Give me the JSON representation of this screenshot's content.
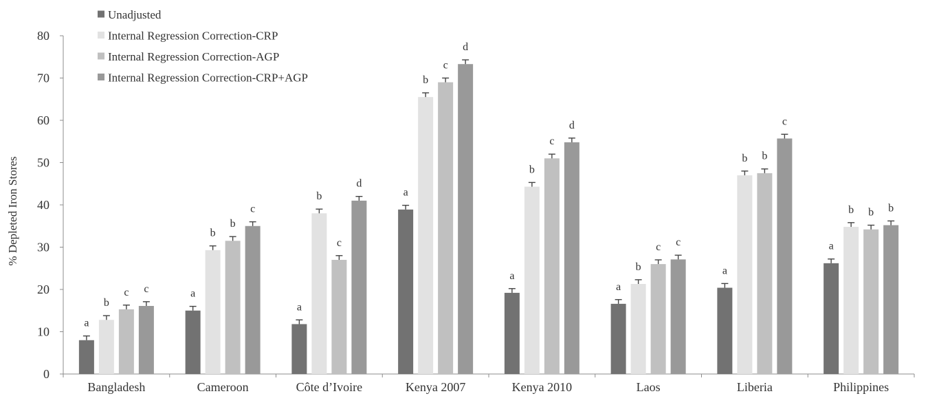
{
  "chart_data": {
    "type": "bar",
    "title": "",
    "xlabel": "",
    "ylabel": "% Depleted Iron Stores",
    "ylim": [
      0,
      80
    ],
    "yticks": [
      0,
      10,
      20,
      30,
      40,
      50,
      60,
      70,
      80
    ],
    "grid": false,
    "legend_position": "top-left",
    "categories": [
      "Bangladesh",
      "Cameroon",
      "Côte d’Ivoire",
      "Kenya 2007",
      "Kenya 2010",
      "Laos",
      "Liberia",
      "Philippines"
    ],
    "series": [
      {
        "name": "Unadjusted",
        "color": "#727272",
        "values": [
          8.0,
          15.0,
          11.8,
          38.9,
          19.2,
          16.6,
          20.4,
          26.2
        ],
        "error": [
          1.0,
          1.0,
          1.0,
          1.0,
          1.0,
          1.0,
          1.0,
          1.0
        ],
        "letters": [
          "a",
          "a",
          "a",
          "a",
          "a",
          "a",
          "a",
          "a"
        ]
      },
      {
        "name": "Internal Regression Correction-CRP",
        "color": "#e2e2e2",
        "values": [
          12.8,
          29.3,
          38.0,
          65.5,
          44.3,
          21.3,
          47.0,
          34.8
        ],
        "error": [
          1.0,
          1.0,
          1.0,
          1.0,
          1.0,
          1.0,
          1.0,
          1.0
        ],
        "letters": [
          "b",
          "b",
          "b",
          "b",
          "b",
          "b",
          "b",
          "b"
        ]
      },
      {
        "name": "Internal Regression Correction-AGP",
        "color": "#c0c0c0",
        "values": [
          15.3,
          31.5,
          27.0,
          69.0,
          51.0,
          26.0,
          47.5,
          34.2
        ],
        "error": [
          1.0,
          1.0,
          1.0,
          1.0,
          1.0,
          1.0,
          1.0,
          1.0
        ],
        "letters": [
          "c",
          "b",
          "c",
          "c",
          "c",
          "c",
          "b",
          "b"
        ]
      },
      {
        "name": "Internal Regression Correction-CRP+AGP",
        "color": "#999999",
        "values": [
          16.1,
          35.0,
          41.0,
          73.3,
          54.8,
          27.1,
          55.7,
          35.2
        ],
        "error": [
          1.0,
          1.0,
          1.0,
          1.0,
          1.0,
          1.0,
          1.0,
          1.0
        ],
        "letters": [
          "c",
          "c",
          "d",
          "d",
          "d",
          "c",
          "c",
          "b"
        ]
      }
    ]
  }
}
